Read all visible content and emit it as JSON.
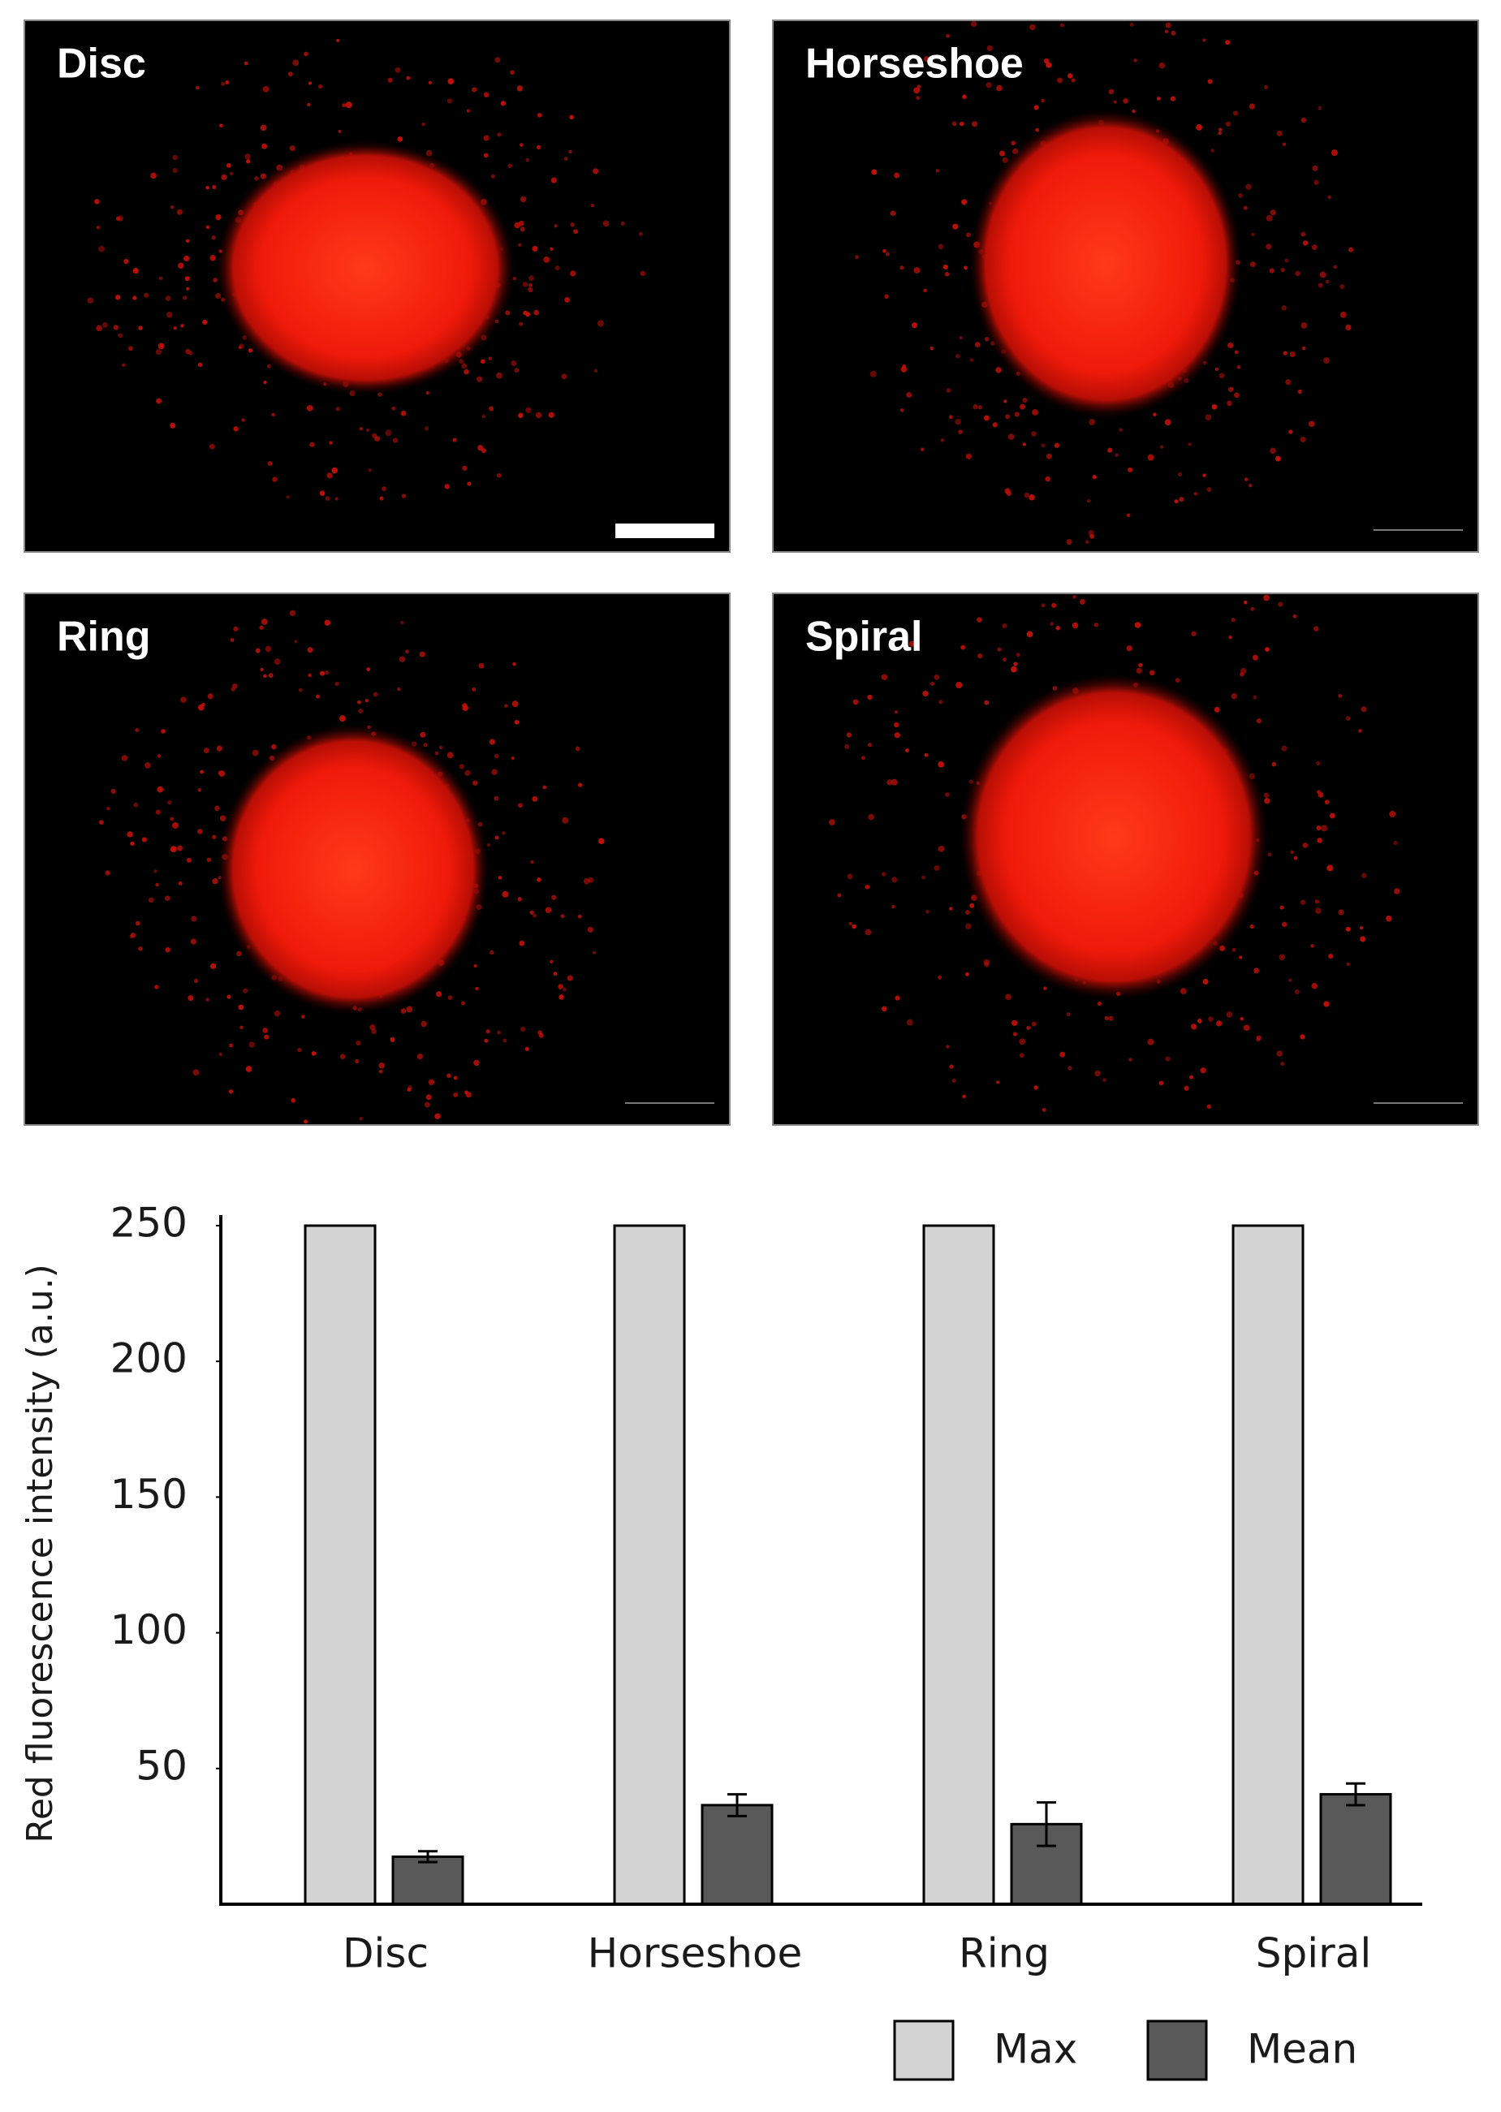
{
  "images": [
    {
      "label": "Disc"
    },
    {
      "label": "Horseshoe"
    },
    {
      "label": "Ring"
    },
    {
      "label": "Spiral"
    }
  ],
  "chart_data": {
    "type": "bar",
    "y_label": "Red fluorescence intensity (a.u.)",
    "categories": [
      "Disc",
      "Horseshoe",
      "Ring",
      "Spiral"
    ],
    "series": [
      {
        "name": "Max",
        "color": "#d3d3d3",
        "values": [
          250,
          250,
          250,
          250
        ]
      },
      {
        "name": "Mean",
        "color": "#595959",
        "values": [
          17.5,
          36.5,
          29.5,
          40.5
        ],
        "errors": [
          2,
          4,
          8,
          4
        ]
      }
    ],
    "ylim": [
      0,
      250
    ],
    "yticks": [
      50,
      100,
      150,
      200,
      250
    ],
    "grid": false,
    "legend": "bottom"
  }
}
